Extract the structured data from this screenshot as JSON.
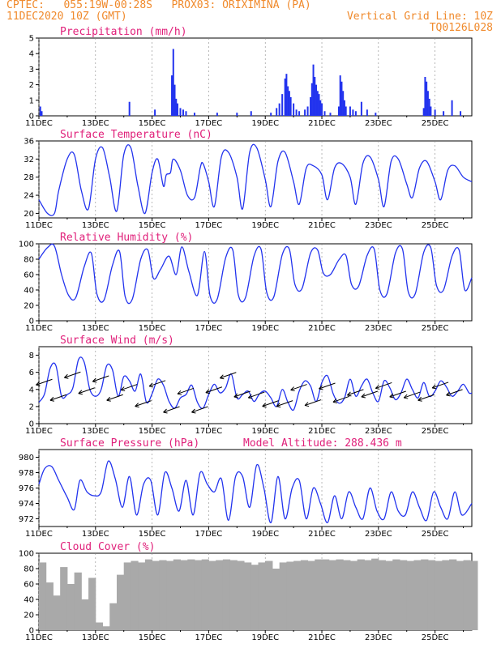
{
  "header": {
    "line1_left": "CPTEC:   055:19W-00:28S   PROX03: ORIXIMINA (PA)",
    "line2_left": "11DEC2020 10Z (GMT)",
    "line2_right": "Vertical Grid Line: 10Z",
    "line3_right": "TQ0126L028"
  },
  "colors": {
    "header": "#f08a2c",
    "title": "#e0207a",
    "series": "#2233ee",
    "cloud": "#a9a9a9"
  },
  "x_axis": {
    "labels": [
      "11DEC",
      "13DEC",
      "15DEC",
      "17DEC",
      "19DEC",
      "21DEC",
      "23DEC",
      "25DEC"
    ],
    "first_label_day": 11,
    "label_step_days": 2,
    "range_days": [
      11,
      26.3
    ]
  },
  "chart_data": [
    {
      "type": "bar",
      "title": "Precipitation (mm/h)",
      "ylim": [
        0,
        5
      ],
      "yticks": [
        "0",
        "1",
        "2",
        "3",
        "4",
        "5"
      ],
      "x": [
        11.05,
        11.1,
        14.2,
        15.1,
        15.7,
        15.75,
        15.8,
        15.85,
        15.9,
        16.0,
        16.1,
        16.2,
        16.5,
        17.3,
        18.0,
        18.5,
        19.2,
        19.4,
        19.5,
        19.6,
        19.7,
        19.75,
        19.8,
        19.85,
        19.9,
        20.0,
        20.1,
        20.2,
        20.4,
        20.5,
        20.6,
        20.65,
        20.7,
        20.75,
        20.8,
        20.85,
        20.9,
        20.95,
        21.0,
        21.1,
        21.3,
        21.6,
        21.65,
        21.7,
        21.75,
        21.8,
        21.85,
        22.0,
        22.1,
        22.2,
        22.4,
        22.6,
        22.9,
        24.6,
        24.65,
        24.7,
        24.75,
        24.8,
        24.85,
        25.0,
        25.3,
        25.6,
        25.9
      ],
      "values": [
        0.6,
        0.3,
        0.9,
        0.4,
        2.6,
        4.3,
        2.0,
        1.1,
        0.8,
        0.5,
        0.4,
        0.3,
        0.2,
        0.2,
        0.2,
        0.3,
        0.2,
        0.5,
        0.8,
        1.4,
        2.4,
        2.7,
        1.9,
        1.6,
        1.2,
        0.8,
        0.4,
        0.3,
        0.4,
        0.6,
        1.2,
        2.1,
        3.3,
        2.5,
        2.0,
        1.6,
        1.4,
        1.0,
        0.8,
        0.3,
        0.2,
        0.6,
        2.6,
        2.2,
        1.6,
        1.0,
        0.6,
        0.6,
        0.4,
        0.3,
        0.9,
        0.4,
        0.2,
        0.5,
        2.5,
        2.2,
        1.6,
        1.1,
        0.6,
        0.4,
        0.3,
        1.0,
        0.3
      ]
    },
    {
      "type": "line",
      "title": "Surface Temperature (nC)",
      "ylim": [
        19,
        36
      ],
      "yticks": [
        "20",
        "24",
        "28",
        "32",
        "36"
      ],
      "x": [
        11.0,
        11.3,
        11.55,
        11.7,
        12.0,
        12.25,
        12.5,
        12.75,
        13.0,
        13.25,
        13.5,
        13.75,
        14.0,
        14.25,
        14.5,
        14.75,
        15.0,
        15.2,
        15.4,
        15.5,
        15.65,
        15.75,
        16.0,
        16.25,
        16.5,
        16.7,
        16.8,
        17.0,
        17.2,
        17.45,
        17.7,
        18.0,
        18.2,
        18.45,
        18.7,
        19.0,
        19.2,
        19.45,
        19.7,
        20.0,
        20.2,
        20.45,
        20.7,
        21.0,
        21.2,
        21.45,
        21.7,
        22.0,
        22.2,
        22.45,
        22.7,
        23.0,
        23.2,
        23.45,
        23.7,
        24.0,
        24.2,
        24.45,
        24.7,
        25.0,
        25.2,
        25.45,
        25.7,
        26.0,
        26.3
      ],
      "values": [
        23.0,
        20.0,
        20.0,
        25.0,
        32.0,
        33.0,
        25.0,
        21.0,
        32.0,
        34.5,
        28.0,
        20.5,
        33.0,
        34.5,
        26.0,
        20.0,
        29.0,
        32.0,
        26.0,
        28.5,
        29.0,
        32.0,
        29.5,
        24.0,
        23.5,
        30.0,
        31.0,
        27.0,
        21.5,
        32.5,
        33.5,
        28.0,
        21.0,
        33.5,
        34.5,
        27.5,
        21.5,
        31.5,
        33.5,
        27.0,
        22.0,
        30.0,
        30.5,
        28.5,
        23.0,
        30.0,
        31.0,
        28.0,
        22.0,
        31.0,
        32.5,
        27.5,
        21.5,
        31.5,
        32.0,
        26.5,
        23.5,
        30.0,
        31.5,
        27.0,
        23.0,
        29.5,
        30.5,
        28.0,
        27.0
      ]
    },
    {
      "type": "line",
      "title": "Relative Humidity (%)",
      "ylim": [
        0,
        100
      ],
      "yticks": [
        "0",
        "20",
        "40",
        "60",
        "80",
        "100"
      ],
      "x": [
        11.0,
        11.3,
        11.55,
        11.8,
        12.05,
        12.3,
        12.6,
        12.85,
        13.05,
        13.3,
        13.6,
        13.85,
        14.05,
        14.3,
        14.6,
        14.85,
        15.05,
        15.3,
        15.6,
        15.85,
        16.05,
        16.3,
        16.6,
        16.85,
        17.05,
        17.3,
        17.6,
        17.85,
        18.05,
        18.3,
        18.6,
        18.85,
        19.05,
        19.3,
        19.6,
        19.85,
        20.05,
        20.3,
        20.6,
        20.85,
        21.05,
        21.3,
        21.6,
        21.85,
        22.05,
        22.3,
        22.6,
        22.85,
        23.05,
        23.3,
        23.6,
        23.85,
        24.05,
        24.3,
        24.6,
        24.85,
        25.05,
        25.3,
        25.6,
        25.85,
        26.05,
        26.3
      ],
      "values": [
        80,
        95,
        97,
        60,
        33,
        30,
        70,
        88,
        35,
        27,
        72,
        90,
        31,
        28,
        80,
        92,
        55,
        67,
        84,
        60,
        96,
        64,
        33,
        90,
        32,
        28,
        82,
        92,
        33,
        30,
        84,
        93,
        37,
        31,
        86,
        93,
        47,
        42,
        88,
        92,
        62,
        60,
        79,
        85,
        47,
        45,
        85,
        93,
        40,
        35,
        88,
        93,
        38,
        35,
        89,
        95,
        46,
        40,
        84,
        92,
        40,
        56
      ]
    },
    {
      "type": "line",
      "title": "Surface Wind (m/s)",
      "ylim": [
        0,
        9
      ],
      "yticks": [
        "0",
        "2",
        "4",
        "6",
        "8"
      ],
      "x": [
        11.0,
        11.2,
        11.4,
        11.6,
        11.8,
        12.0,
        12.2,
        12.4,
        12.6,
        12.8,
        13.0,
        13.2,
        13.4,
        13.6,
        13.8,
        14.0,
        14.2,
        14.4,
        14.6,
        14.8,
        15.0,
        15.2,
        15.4,
        15.6,
        15.8,
        16.0,
        16.2,
        16.4,
        16.6,
        16.8,
        17.0,
        17.2,
        17.4,
        17.6,
        17.8,
        18.0,
        18.2,
        18.4,
        18.6,
        18.8,
        19.0,
        19.2,
        19.4,
        19.6,
        19.8,
        20.0,
        20.2,
        20.4,
        20.6,
        20.8,
        21.0,
        21.2,
        21.4,
        21.6,
        21.8,
        22.0,
        22.2,
        22.4,
        22.6,
        22.8,
        23.0,
        23.2,
        23.4,
        23.6,
        23.8,
        24.0,
        24.2,
        24.4,
        24.6,
        24.8,
        25.0,
        25.2,
        25.4,
        25.6,
        25.8,
        26.0,
        26.2,
        26.3
      ],
      "values": [
        2.5,
        3.5,
        6.5,
        6.8,
        3.2,
        3.4,
        4.2,
        7.5,
        7.2,
        4.0,
        3.2,
        4.0,
        6.8,
        6.3,
        3.2,
        5.5,
        5.0,
        3.8,
        5.8,
        2.5,
        3.5,
        5.2,
        4.5,
        2.6,
        1.8,
        3.0,
        3.4,
        4.5,
        2.5,
        1.8,
        3.4,
        4.6,
        3.6,
        4.2,
        5.8,
        3.0,
        3.4,
        3.8,
        2.6,
        3.5,
        3.8,
        3.0,
        2.0,
        4.0,
        2.5,
        1.6,
        3.8,
        5.0,
        4.4,
        2.6,
        4.8,
        5.6,
        3.5,
        2.4,
        3.0,
        5.2,
        3.2,
        4.4,
        5.2,
        3.6,
        2.6,
        5.0,
        4.2,
        2.8,
        3.6,
        5.2,
        4.0,
        3.0,
        4.8,
        3.2,
        3.8,
        5.0,
        4.3,
        3.2,
        3.8,
        4.6,
        3.6,
        3.6
      ]
    },
    {
      "type": "line",
      "title": "Surface Pressure (hPa)",
      "annotation": "Model Altitude: 288.436 m",
      "ylim": [
        971,
        981
      ],
      "yticks": [
        "972",
        "974",
        "976",
        "978",
        "980"
      ],
      "x": [
        11.0,
        11.2,
        11.45,
        11.7,
        12.0,
        12.25,
        12.45,
        12.7,
        12.95,
        13.2,
        13.45,
        13.7,
        13.95,
        14.2,
        14.45,
        14.7,
        14.95,
        15.2,
        15.45,
        15.7,
        15.95,
        16.2,
        16.45,
        16.7,
        16.95,
        17.2,
        17.45,
        17.7,
        17.95,
        18.2,
        18.45,
        18.7,
        18.95,
        19.2,
        19.45,
        19.7,
        19.95,
        20.2,
        20.45,
        20.7,
        20.95,
        21.2,
        21.45,
        21.7,
        21.95,
        22.2,
        22.45,
        22.7,
        22.95,
        23.2,
        23.45,
        23.7,
        23.95,
        24.2,
        24.45,
        24.7,
        24.95,
        25.2,
        25.45,
        25.7,
        25.95,
        26.3
      ],
      "values": [
        976.5,
        978.5,
        978.8,
        977.0,
        974.8,
        973.2,
        977.0,
        975.5,
        975.0,
        975.5,
        979.5,
        977.2,
        973.5,
        977.5,
        972.5,
        976.5,
        977.0,
        972.5,
        978.0,
        976.0,
        973.0,
        977.0,
        972.5,
        978.0,
        976.5,
        975.5,
        977.2,
        971.8,
        977.5,
        977.5,
        973.5,
        979.0,
        976.0,
        971.5,
        977.5,
        972.0,
        976.0,
        977.0,
        972.0,
        976.0,
        974.0,
        971.5,
        975.0,
        972.0,
        975.5,
        973.5,
        972.0,
        976.0,
        973.0,
        972.0,
        975.5,
        973.0,
        972.5,
        975.5,
        973.5,
        971.8,
        975.5,
        973.5,
        972.0,
        975.5,
        972.5,
        974.0
      ]
    },
    {
      "type": "bar",
      "title": "Cloud Cover (%)",
      "ylim": [
        0,
        100
      ],
      "yticks": [
        "0",
        "20",
        "40",
        "60",
        "80",
        "100"
      ],
      "x": [
        11.0,
        11.25,
        11.5,
        11.75,
        12.0,
        12.25,
        12.5,
        12.75,
        13.0,
        13.25,
        13.5,
        13.75,
        14.0,
        14.25,
        14.5,
        14.75,
        15.0,
        15.25,
        15.5,
        15.75,
        16.0,
        16.25,
        16.5,
        16.75,
        17.0,
        17.25,
        17.5,
        17.75,
        18.0,
        18.25,
        18.5,
        18.75,
        19.0,
        19.25,
        19.5,
        19.75,
        20.0,
        20.25,
        20.5,
        20.75,
        21.0,
        21.25,
        21.5,
        21.75,
        22.0,
        22.25,
        22.5,
        22.75,
        23.0,
        23.25,
        23.5,
        23.75,
        24.0,
        24.25,
        24.5,
        24.75,
        25.0,
        25.25,
        25.5,
        25.75,
        26.0,
        26.25
      ],
      "values": [
        88,
        62,
        45,
        82,
        60,
        75,
        40,
        68,
        10,
        5,
        35,
        72,
        88,
        90,
        88,
        92,
        90,
        91,
        90,
        92,
        91,
        92,
        91,
        92,
        90,
        91,
        92,
        91,
        90,
        88,
        85,
        88,
        90,
        80,
        88,
        89,
        90,
        91,
        90,
        92,
        92,
        91,
        92,
        91,
        90,
        92,
        91,
        93,
        91,
        90,
        92,
        91,
        90,
        91,
        92,
        91,
        90,
        91,
        92,
        90,
        91,
        90
      ]
    }
  ]
}
